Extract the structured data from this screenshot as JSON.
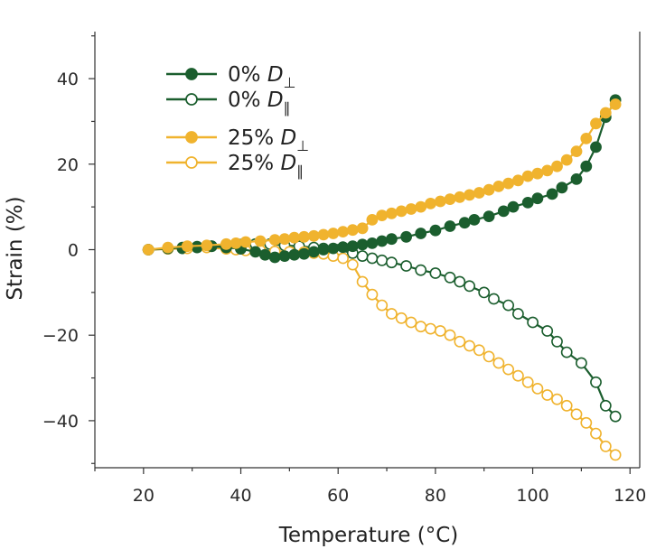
{
  "chart_data": {
    "type": "line",
    "title": "",
    "xlabel": "Temperature (°C)",
    "ylabel": "Strain (%)",
    "xlim": [
      10,
      122
    ],
    "ylim": [
      -51,
      51
    ],
    "xticks": [
      20,
      40,
      60,
      80,
      100,
      120
    ],
    "xtick_labels": [
      "20",
      "40",
      "60",
      "80",
      "100",
      "120"
    ],
    "yticks": [
      -40,
      -20,
      0,
      20,
      40
    ],
    "ytick_labels": [
      "−40",
      "−20",
      "0",
      "20",
      "40"
    ],
    "grid": false,
    "legend_position": "top-left",
    "series": [
      {
        "name": "0% D⊥",
        "legend_prefix": "0% D",
        "legend_subscript": "⊥",
        "color": "#1b5e2e",
        "marker": "filled",
        "x": [
          21,
          25,
          28,
          31,
          34,
          37,
          40,
          43,
          45,
          47,
          49,
          51,
          53,
          55,
          57,
          59,
          61,
          63,
          65,
          67,
          69,
          71,
          74,
          77,
          80,
          83,
          86,
          88,
          91,
          94,
          96,
          99,
          101,
          104,
          106,
          109,
          111,
          113,
          115,
          117
        ],
        "y": [
          0,
          0.3,
          0.5,
          0.7,
          0.8,
          0.5,
          0.2,
          -0.5,
          -1.2,
          -1.8,
          -1.5,
          -1.2,
          -1.0,
          -0.5,
          0,
          0.3,
          0.6,
          0.8,
          1.2,
          1.5,
          2,
          2.5,
          3,
          3.8,
          4.5,
          5.5,
          6.3,
          7,
          7.8,
          9,
          10,
          11,
          12,
          13,
          14.5,
          16.5,
          19.5,
          24,
          31,
          35
        ]
      },
      {
        "name": "0% D∥",
        "legend_prefix": "0% D",
        "legend_subscript": "∥",
        "color": "#1b5e2e",
        "marker": "open",
        "x": [
          21,
          25,
          28,
          31,
          34,
          37,
          40,
          43,
          46,
          49,
          52,
          55,
          57,
          60,
          63,
          65,
          67,
          69,
          71,
          74,
          77,
          80,
          83,
          85,
          87,
          90,
          92,
          95,
          97,
          100,
          103,
          105,
          107,
          110,
          113,
          115,
          117
        ],
        "y": [
          0,
          0.2,
          0.3,
          0.5,
          0.8,
          1.0,
          1.2,
          1.3,
          1.3,
          1.0,
          0.8,
          0.5,
          0.3,
          0,
          -0.8,
          -1.5,
          -2,
          -2.5,
          -3,
          -3.8,
          -4.8,
          -5.5,
          -6.5,
          -7.5,
          -8.5,
          -10,
          -11.5,
          -13,
          -15,
          -17,
          -19,
          -21.5,
          -24,
          -26.5,
          -31,
          -36.5,
          -39
        ]
      },
      {
        "name": "25% D⊥",
        "legend_prefix": "25% D",
        "legend_subscript": "⊥",
        "color": "#f0b32e",
        "marker": "filled",
        "x": [
          21,
          25,
          29,
          33,
          37,
          39,
          41,
          44,
          47,
          49,
          51,
          53,
          55,
          57,
          59,
          61,
          63,
          65,
          67,
          69,
          71,
          73,
          75,
          77,
          79,
          81,
          83,
          85,
          87,
          89,
          91,
          93,
          95,
          97,
          99,
          101,
          103,
          105,
          107,
          109,
          111,
          113,
          115,
          117
        ],
        "y": [
          0,
          0.5,
          0.8,
          1.0,
          1.3,
          1.5,
          1.8,
          2.0,
          2.3,
          2.5,
          2.8,
          3.0,
          3.2,
          3.5,
          3.8,
          4.2,
          4.6,
          5.0,
          7.0,
          8.0,
          8.5,
          9.0,
          9.5,
          10.0,
          10.8,
          11.3,
          11.8,
          12.3,
          12.8,
          13.3,
          14.0,
          14.8,
          15.5,
          16.2,
          17.2,
          17.8,
          18.5,
          19.5,
          21.0,
          23.0,
          26.0,
          29.5,
          32.0,
          34.0
        ],
        "y_note": "estimated"
      },
      {
        "name": "25% D∥",
        "legend_prefix": "25% D",
        "legend_subscript": "∥",
        "color": "#f0b32e",
        "marker": "open",
        "x": [
          21,
          25,
          29,
          33,
          37,
          39,
          41,
          44,
          47,
          50,
          53,
          55,
          57,
          59,
          61,
          63,
          65,
          67,
          69,
          71,
          73,
          75,
          77,
          79,
          81,
          83,
          85,
          87,
          89,
          91,
          93,
          95,
          97,
          99,
          101,
          103,
          105,
          107,
          109,
          111,
          113,
          115,
          117
        ],
        "y": [
          0,
          0.2,
          0.3,
          0.5,
          0.2,
          0,
          -0.2,
          -0.2,
          -0.4,
          -0.5,
          -0.6,
          -0.8,
          -1.0,
          -1.5,
          -2.0,
          -3.5,
          -7.5,
          -10.5,
          -13.0,
          -15.0,
          -16.0,
          -17.0,
          -18.0,
          -18.5,
          -19.0,
          -20.0,
          -21.5,
          -22.5,
          -23.5,
          -25.0,
          -26.5,
          -28.0,
          -29.5,
          -31.0,
          -32.5,
          -34.0,
          -35.0,
          -36.5,
          -38.5,
          -40.5,
          -43.0,
          -46.0,
          -48.0
        ]
      }
    ]
  }
}
